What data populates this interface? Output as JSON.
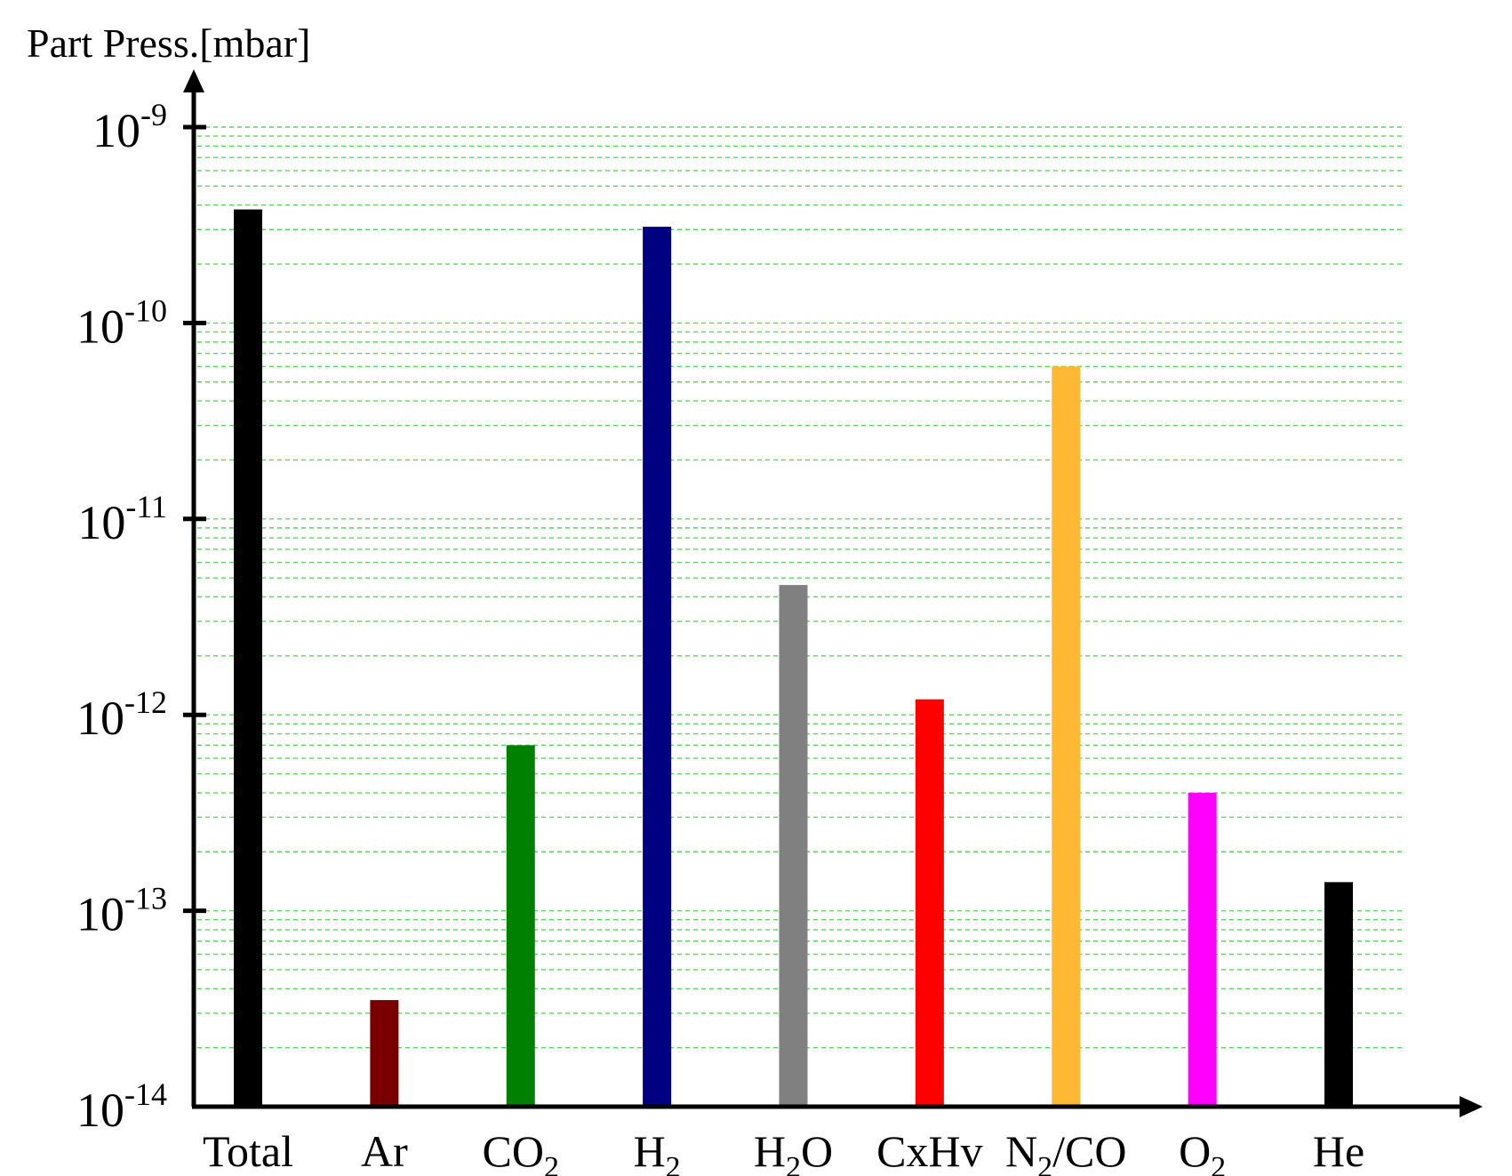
{
  "chart_data": {
    "type": "bar",
    "y_axis_title": "Part Press.[mbar]",
    "y_scale": "log",
    "ylim": [
      1e-14,
      1e-09
    ],
    "grid": true,
    "y_ticks": [
      {
        "value": 1e-14,
        "base": "10",
        "exp": "-14"
      },
      {
        "value": 1e-13,
        "base": "10",
        "exp": "-13"
      },
      {
        "value": 1e-12,
        "base": "10",
        "exp": "-12"
      },
      {
        "value": 1e-11,
        "base": "10",
        "exp": "-11"
      },
      {
        "value": 1e-10,
        "base": "10",
        "exp": "-10"
      },
      {
        "value": 1e-09,
        "base": "10",
        "exp": "-9"
      }
    ],
    "categories": [
      {
        "parts": [
          {
            "t": "Total"
          }
        ]
      },
      {
        "parts": [
          {
            "t": "Ar"
          }
        ]
      },
      {
        "parts": [
          {
            "t": "CO"
          },
          {
            "t": "2",
            "sub": true
          }
        ]
      },
      {
        "parts": [
          {
            "t": "H"
          },
          {
            "t": "2",
            "sub": true
          }
        ]
      },
      {
        "parts": [
          {
            "t": "H"
          },
          {
            "t": "2",
            "sub": true
          },
          {
            "t": "O"
          }
        ]
      },
      {
        "parts": [
          {
            "t": "CxHv"
          }
        ]
      },
      {
        "parts": [
          {
            "t": "N"
          },
          {
            "t": "2",
            "sub": true
          },
          {
            "t": "/CO"
          }
        ]
      },
      {
        "parts": [
          {
            "t": "O"
          },
          {
            "t": "2",
            "sub": true
          }
        ]
      },
      {
        "parts": [
          {
            "t": "He"
          }
        ]
      }
    ],
    "values": [
      3.8e-10,
      3.5e-14,
      7e-13,
      3.1e-10,
      4.6e-12,
      1.2e-12,
      6e-11,
      4e-13,
      1.4e-13
    ],
    "colors": [
      "#000000",
      "#7a0000",
      "#008000",
      "#000080",
      "#808080",
      "#ff0000",
      "#ffb833",
      "#ff00ff",
      "#000000"
    ]
  }
}
